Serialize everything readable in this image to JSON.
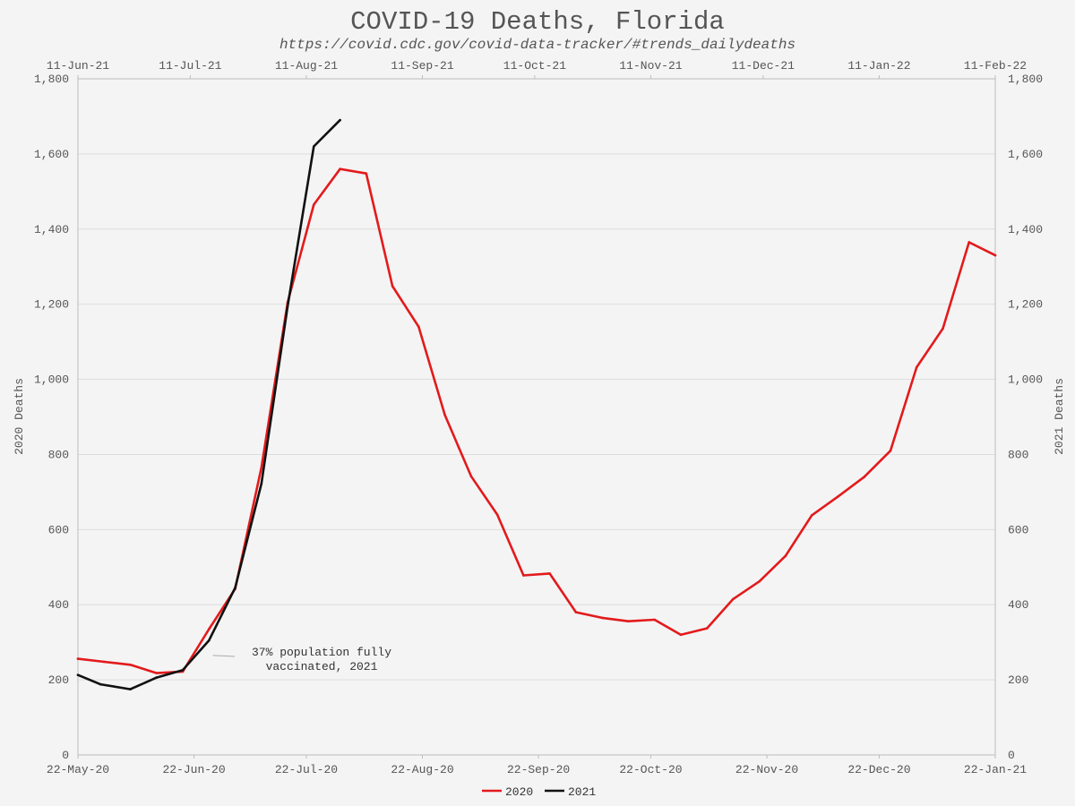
{
  "chart_data": {
    "type": "line",
    "title": "COVID-19 Deaths, Florida",
    "subtitle": "https://covid.cdc.gov/covid-data-tracker/#trends_dailydeaths",
    "ylabel_left": "2020 Deaths",
    "ylabel_right": "2021 Deaths",
    "ylim": [
      0,
      1800
    ],
    "yticks": [
      0,
      200,
      400,
      600,
      800,
      1000,
      1200,
      1400,
      1600,
      1800
    ],
    "ytick_labels": [
      "0",
      "200",
      "400",
      "600",
      "800",
      "1,000",
      "1,200",
      "1,400",
      "1,600",
      "1,800"
    ],
    "xlim_days": [
      0,
      245
    ],
    "bottom_axis_ticks": [
      {
        "day": 0,
        "label": "22-May-20"
      },
      {
        "day": 31,
        "label": "22-Jun-20"
      },
      {
        "day": 61,
        "label": "22-Jul-20"
      },
      {
        "day": 92,
        "label": "22-Aug-20"
      },
      {
        "day": 123,
        "label": "22-Sep-20"
      },
      {
        "day": 153,
        "label": "22-Oct-20"
      },
      {
        "day": 184,
        "label": "22-Nov-20"
      },
      {
        "day": 214,
        "label": "22-Dec-20"
      },
      {
        "day": 245,
        "label": "22-Jan-21"
      }
    ],
    "top_axis_ticks": [
      {
        "day": 0,
        "label": "11-Jun-21"
      },
      {
        "day": 30,
        "label": "11-Jul-21"
      },
      {
        "day": 61,
        "label": "11-Aug-21"
      },
      {
        "day": 92,
        "label": "11-Sep-21"
      },
      {
        "day": 122,
        "label": "11-Oct-21"
      },
      {
        "day": 153,
        "label": "11-Nov-21"
      },
      {
        "day": 183,
        "label": "11-Dec-21"
      },
      {
        "day": 214,
        "label": "11-Jan-22"
      },
      {
        "day": 245,
        "label": "11-Feb-22"
      }
    ],
    "series": [
      {
        "name": "2020",
        "color": "#e31a1c",
        "x_days": [
          0,
          7,
          14,
          21,
          28,
          35,
          42,
          49,
          56,
          63,
          70,
          77,
          84,
          91,
          98,
          105,
          112,
          119,
          126,
          133,
          140,
          147,
          154,
          161,
          168,
          175,
          182,
          189,
          196,
          203,
          210,
          217,
          224,
          231,
          238,
          245
        ],
        "values": [
          256,
          248,
          240,
          218,
          222,
          335,
          442,
          765,
          1205,
          1465,
          1560,
          1548,
          1248,
          1140,
          905,
          742,
          640,
          478,
          483,
          380,
          365,
          356,
          360,
          320,
          337,
          415,
          462,
          530,
          638,
          688,
          740,
          810,
          1032,
          1135,
          1365,
          1330
        ]
      },
      {
        "name": "2021",
        "color": "#111111",
        "x_days": [
          0,
          6,
          14,
          21,
          28,
          35,
          42,
          49,
          56,
          63,
          70
        ],
        "values": [
          213,
          188,
          175,
          206,
          226,
          305,
          445,
          722,
          1195,
          1620,
          1690
        ]
      }
    ],
    "annotation": {
      "line1": "37% population fully",
      "line2": "vaccinated, 2021",
      "day": 36,
      "value": 265
    },
    "legend": {
      "placement": "bottom-center",
      "entries": [
        {
          "label": "2020",
          "color": "#e31a1c"
        },
        {
          "label": "2021",
          "color": "#111111"
        }
      ]
    }
  }
}
